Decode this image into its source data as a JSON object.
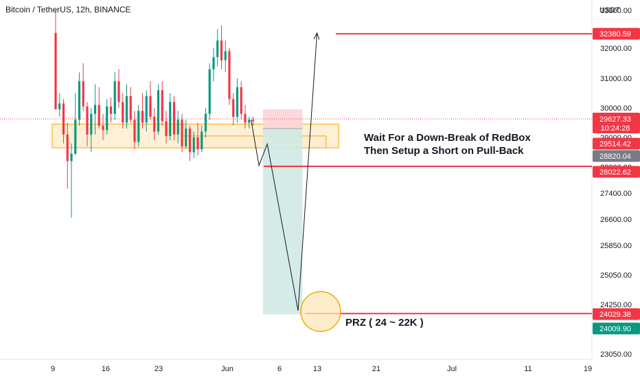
{
  "header": {
    "title": "Bitcoin / TetherUS, 12h, BINANCE"
  },
  "chart_data": {
    "type": "candlestick",
    "symbol": "Bitcoin / TetherUS",
    "interval": "12h",
    "exchange": "BINANCE",
    "currency_label": "USDT",
    "y_axis_ticks": [
      "33000.00",
      "32000.00",
      "31000.00",
      "30000.00",
      "29000.00",
      "28000.00",
      "27400.00",
      "26600.00",
      "25850.00",
      "25050.00",
      "24250.00",
      "23050.00"
    ],
    "x_axis_ticks": [
      "9",
      "16",
      "23",
      "Jun",
      "6",
      "13",
      "21",
      "Jul",
      "11",
      "19"
    ],
    "last_price": 29627.33,
    "countdown": "10:24:28",
    "price_badges": [
      {
        "label": "32380.59",
        "color": "#f23645",
        "price": 32380.59
      },
      {
        "label": "29514.42",
        "color": "#f23645",
        "price": 29514.42
      },
      {
        "label": "28820.04",
        "color": "#787b86",
        "price": 28820.04
      },
      {
        "label": "28022.62",
        "color": "#f23645",
        "price": 28022.62
      },
      {
        "label": "24029.38",
        "color": "#f23645",
        "price": 24029.38
      },
      {
        "label": "24009.90",
        "color": "#089981",
        "price": 24009.9
      }
    ],
    "horizontal_lines": [
      {
        "price": 32380.59,
        "color": "#f23645"
      },
      {
        "price": 28022.62,
        "color": "#f23645"
      },
      {
        "price": 24029.38,
        "color": "#f23645"
      }
    ],
    "annotations": {
      "box_note_line1": "Wait For a Down-Break of RedBox",
      "box_note_line2": "Then Setup a Short on Pull-Back",
      "prz_label": "PRZ ( 24 ~ 22K )"
    },
    "candles": [
      [
        32400,
        33000,
        29950,
        29950
      ],
      [
        29950,
        30500,
        29700,
        30150
      ],
      [
        30150,
        30300,
        28800,
        29100
      ],
      [
        29100,
        29500,
        27500,
        28200
      ],
      [
        28200,
        28800,
        26650,
        28450
      ],
      [
        28450,
        30500,
        28400,
        29600
      ],
      [
        29600,
        31200,
        29400,
        30900
      ],
      [
        30900,
        31500,
        29900,
        30050
      ],
      [
        30050,
        30200,
        28700,
        29100
      ],
      [
        29100,
        30000,
        28500,
        29800
      ],
      [
        29800,
        30800,
        29100,
        30100
      ],
      [
        30100,
        30700,
        29300,
        29400
      ],
      [
        29400,
        29800,
        28900,
        29250
      ],
      [
        29250,
        30300,
        29100,
        30050
      ],
      [
        30050,
        30350,
        29500,
        29800
      ],
      [
        29800,
        31200,
        29600,
        30900
      ],
      [
        30900,
        31300,
        30000,
        30200
      ],
      [
        30200,
        30500,
        29300,
        29500
      ],
      [
        29500,
        30800,
        29300,
        30400
      ],
      [
        30400,
        30700,
        29500,
        29600
      ],
      [
        29600,
        29900,
        28600,
        28850
      ],
      [
        28850,
        30100,
        28700,
        29900
      ],
      [
        29900,
        30500,
        29300,
        29500
      ],
      [
        29500,
        30600,
        29200,
        30400
      ],
      [
        30400,
        30900,
        29600,
        29700
      ],
      [
        29700,
        30000,
        28900,
        29200
      ],
      [
        29200,
        30800,
        29100,
        30600
      ],
      [
        30600,
        30900,
        29400,
        29550
      ],
      [
        29550,
        29900,
        28800,
        29050
      ],
      [
        29050,
        30500,
        28900,
        30200
      ],
      [
        30200,
        30400,
        28900,
        29100
      ],
      [
        29100,
        29900,
        28800,
        29600
      ],
      [
        29600,
        29800,
        28500,
        28700
      ],
      [
        28700,
        29600,
        28600,
        29300
      ],
      [
        29300,
        29400,
        28200,
        28500
      ],
      [
        28500,
        29200,
        28300,
        29000
      ],
      [
        29000,
        29500,
        28400,
        28600
      ],
      [
        28600,
        29400,
        28500,
        29200
      ],
      [
        29200,
        30000,
        29000,
        29800
      ],
      [
        29800,
        31500,
        29600,
        31300
      ],
      [
        31300,
        32000,
        30900,
        31700
      ],
      [
        31700,
        32500,
        31400,
        32200
      ],
      [
        32200,
        32600,
        31300,
        31600
      ],
      [
        31600,
        32200,
        31200,
        31900
      ],
      [
        31900,
        32000,
        30100,
        30300
      ],
      [
        30300,
        30500,
        29400,
        29700
      ],
      [
        29700,
        31000,
        29500,
        30700
      ],
      [
        30700,
        30900,
        29600,
        29800
      ],
      [
        29800,
        30100,
        29300,
        29500
      ],
      [
        29500,
        29700,
        29300,
        29600
      ],
      [
        29600,
        29700,
        29400,
        29550
      ]
    ],
    "trade_zone": {
      "entry": 29300,
      "stop": 29950,
      "target": 24009.9,
      "start": 52.5,
      "end": 62.5
    },
    "red_box": {
      "top": 29450,
      "bottom": 28650,
      "start": 0,
      "end": 71
    },
    "inner_box": {
      "top": 29050,
      "bottom": 28650,
      "start": 32,
      "end": 68.5
    },
    "forecast_path": [
      [
        49.5,
        29600
      ],
      [
        51.5,
        28050
      ],
      [
        53.6,
        28780
      ],
      [
        61.4,
        24100
      ],
      [
        66.2,
        32400
      ]
    ],
    "grid": false,
    "legend": "none"
  },
  "style": {
    "bull_color": "#089981",
    "bear_color": "#f23645",
    "red_box_fill": "#fdebc8",
    "red_box_stroke": "#f7a600",
    "profit_fill": "#cfe9e4",
    "loss_fill": "#f9d4d7",
    "prz_fill": "#fde7b8",
    "prz_stroke": "#f7a600",
    "line_color": "#f23645"
  }
}
